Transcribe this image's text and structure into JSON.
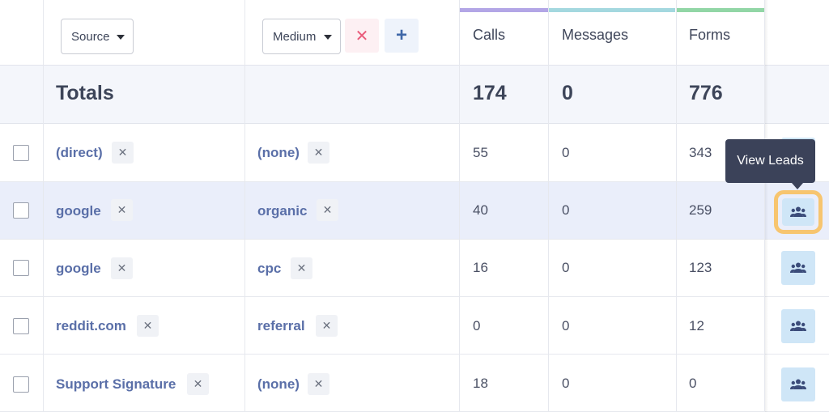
{
  "filters": {
    "source_label": "Source",
    "medium_label": "Medium",
    "remove_symbol": "✕",
    "add_symbol": "+"
  },
  "columns": [
    {
      "label": "Calls",
      "color": "#b3a6e6"
    },
    {
      "label": "Messages",
      "color": "#a4d8df"
    },
    {
      "label": "Forms",
      "color": "#92d6a6"
    }
  ],
  "totals": {
    "label": "Totals",
    "calls": "174",
    "messages": "0",
    "forms": "776"
  },
  "rows": [
    {
      "source": "(direct)",
      "medium": "(none)",
      "calls": "55",
      "messages": "0",
      "forms": "343"
    },
    {
      "source": "google",
      "medium": "organic",
      "calls": "40",
      "messages": "0",
      "forms": "259"
    },
    {
      "source": "google",
      "medium": "cpc",
      "calls": "16",
      "messages": "0",
      "forms": "123"
    },
    {
      "source": "reddit.com",
      "medium": "referral",
      "calls": "0",
      "messages": "0",
      "forms": "12"
    },
    {
      "source": "Support Signature",
      "medium": "(none)",
      "calls": "18",
      "messages": "0",
      "forms": "0"
    }
  ],
  "chip_symbol": "✕",
  "tooltip": "View Leads",
  "leads_icon": "users-icon"
}
